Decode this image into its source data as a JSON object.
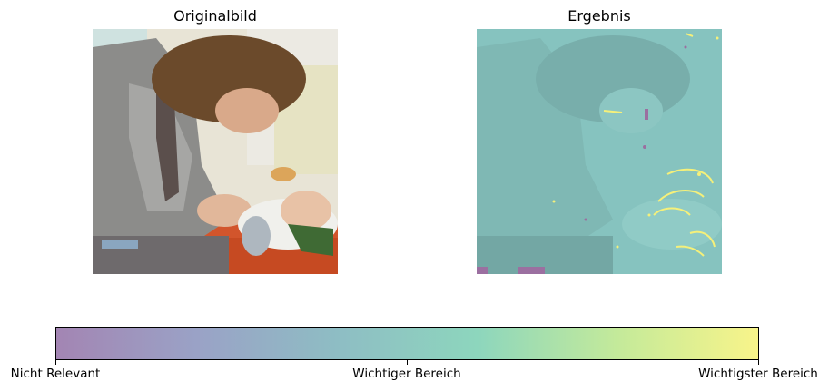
{
  "panels": {
    "left": {
      "title": "Originalbild"
    },
    "right": {
      "title": "Ergebnis"
    }
  },
  "colorbar": {
    "ticks": [
      {
        "label": "Nicht Relevant",
        "position": 0.0
      },
      {
        "label": "Wichtiger Bereich",
        "position": 0.5
      },
      {
        "label": "Wichtigster Bereich",
        "position": 1.0
      }
    ],
    "gradient_colors": [
      "#a385b3",
      "#9aa2c6",
      "#8ebdc4",
      "#8dd6bd",
      "#c4ea9a",
      "#f8f48a"
    ]
  },
  "colors": {
    "overlay_base": "#86c3bf",
    "highlight_yellow": "#f5f07a",
    "highlight_purple": "#9b6fa0"
  }
}
